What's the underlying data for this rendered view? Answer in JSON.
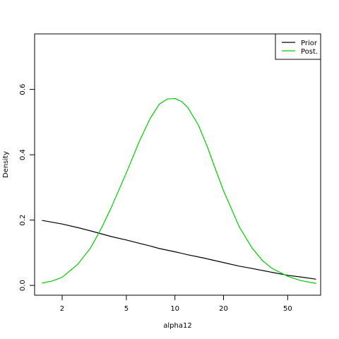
{
  "chart_data": {
    "type": "line",
    "title": "",
    "xlabel": "alpha12",
    "ylabel": "Density",
    "x_scale": "log",
    "xlim": [
      1.35,
      80
    ],
    "ylim": [
      -0.03,
      0.77
    ],
    "x_ticks": [
      2,
      5,
      10,
      20,
      50
    ],
    "x_tick_labels": [
      "2",
      "5",
      "10",
      "20",
      "50"
    ],
    "y_ticks": [
      0.0,
      0.2,
      0.4,
      0.6
    ],
    "y_tick_labels": [
      "0.0",
      "0.2",
      "0.4",
      "0.6"
    ],
    "grid": false,
    "legend": {
      "position": "top-right"
    },
    "colors": {
      "prior": "#000000",
      "posterior": "#00cd00",
      "frame": "#000000",
      "background": "#ffffff"
    },
    "series": [
      {
        "name": "Prior",
        "x": [
          1.5,
          2,
          2.5,
          3,
          4,
          5,
          6,
          7,
          8,
          10,
          12,
          15,
          20,
          25,
          30,
          40,
          50,
          60,
          75
        ],
        "y": [
          0.199,
          0.188,
          0.177,
          0.167,
          0.15,
          0.139,
          0.129,
          0.121,
          0.113,
          0.103,
          0.094,
          0.084,
          0.07,
          0.059,
          0.052,
          0.04,
          0.031,
          0.026,
          0.019
        ]
      },
      {
        "name": "Post.",
        "x": [
          1.5,
          1.75,
          2,
          2.5,
          3,
          3.5,
          4,
          5,
          6,
          7,
          8,
          9,
          10,
          11,
          12,
          14,
          16,
          18,
          20,
          25,
          30,
          35,
          40,
          50,
          60,
          75
        ],
        "y": [
          0.007,
          0.014,
          0.025,
          0.065,
          0.115,
          0.175,
          0.235,
          0.345,
          0.44,
          0.51,
          0.555,
          0.571,
          0.572,
          0.563,
          0.545,
          0.49,
          0.42,
          0.35,
          0.29,
          0.18,
          0.115,
          0.075,
          0.052,
          0.028,
          0.015,
          0.006
        ]
      }
    ]
  }
}
